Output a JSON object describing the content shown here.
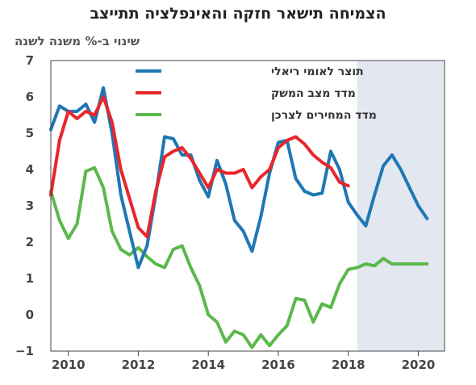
{
  "chart_data": {
    "type": "line",
    "title": "הצמיחה תישאר חזקה והאינפלציה תתייצב",
    "ylabel": "שינוי ב-% משנה לשנה",
    "xlim": [
      2009.5,
      2020.75
    ],
    "ylim": [
      -1,
      7
    ],
    "y_ticks": [
      "7",
      "6",
      "5",
      "4",
      "3",
      "2",
      "1",
      "0",
      "−1"
    ],
    "y_tick_values": [
      7,
      6,
      5,
      4,
      3,
      2,
      1,
      0,
      -1
    ],
    "x_ticks": [
      "2010",
      "2012",
      "2014",
      "2016",
      "2018",
      "2020"
    ],
    "x_tick_values": [
      2010,
      2012,
      2014,
      2016,
      2018,
      2020
    ],
    "forecast_region": {
      "from": 2018.25,
      "to": 2020.75,
      "color": "#e3e7f0"
    },
    "legend_position": "top-center",
    "series": [
      {
        "name": "תוצר לאומי ריאלי",
        "color": "#1f77b4",
        "x": [
          2009.5,
          2009.75,
          2010.0,
          2010.25,
          2010.5,
          2010.75,
          2011.0,
          2011.25,
          2011.5,
          2011.75,
          2012.0,
          2012.25,
          2012.5,
          2012.75,
          2013.0,
          2013.25,
          2013.5,
          2013.75,
          2014.0,
          2014.25,
          2014.5,
          2014.75,
          2015.0,
          2015.25,
          2015.5,
          2015.75,
          2016.0,
          2016.25,
          2016.5,
          2016.75,
          2017.0,
          2017.25,
          2017.5,
          2017.75,
          2018.0,
          2018.25,
          2018.5,
          2018.75,
          2019.0,
          2019.25,
          2019.5,
          2019.75,
          2020.0,
          2020.25
        ],
        "y": [
          5.1,
          5.75,
          5.6,
          5.6,
          5.8,
          5.3,
          6.25,
          5.0,
          3.3,
          2.3,
          1.3,
          1.9,
          3.3,
          4.9,
          4.85,
          4.4,
          4.4,
          3.7,
          3.25,
          4.25,
          3.6,
          2.6,
          2.3,
          1.75,
          2.7,
          3.9,
          4.75,
          4.8,
          3.75,
          3.4,
          3.3,
          3.35,
          4.5,
          4.0,
          3.1,
          2.75,
          2.45,
          3.3,
          4.1,
          4.4,
          4.0,
          3.5,
          3.0,
          2.65
        ]
      },
      {
        "name": "מדד מצב המשק",
        "color": "#e8262b",
        "x": [
          2009.5,
          2009.75,
          2010.0,
          2010.25,
          2010.5,
          2010.75,
          2011.0,
          2011.25,
          2011.5,
          2011.75,
          2012.0,
          2012.25,
          2012.5,
          2012.75,
          2013.0,
          2013.25,
          2013.5,
          2013.75,
          2014.0,
          2014.25,
          2014.5,
          2014.75,
          2015.0,
          2015.25,
          2015.5,
          2015.75,
          2016.0,
          2016.25,
          2016.5,
          2016.75,
          2017.0,
          2017.25,
          2017.5,
          2017.75,
          2018.0
        ],
        "y": [
          3.3,
          4.8,
          5.6,
          5.4,
          5.6,
          5.5,
          6.0,
          5.3,
          4.0,
          3.2,
          2.4,
          2.15,
          3.4,
          4.35,
          4.5,
          4.6,
          4.3,
          3.9,
          3.5,
          4.0,
          3.9,
          3.9,
          4.0,
          3.5,
          3.8,
          4.0,
          4.6,
          4.8,
          4.9,
          4.7,
          4.4,
          4.2,
          4.05,
          3.65,
          3.55
        ]
      },
      {
        "name": "מדד המחירים לצרכן",
        "color": "#5cb84c",
        "x": [
          2009.5,
          2009.75,
          2010.0,
          2010.25,
          2010.5,
          2010.75,
          2011.0,
          2011.25,
          2011.5,
          2011.75,
          2012.0,
          2012.25,
          2012.5,
          2012.75,
          2013.0,
          2013.25,
          2013.5,
          2013.75,
          2014.0,
          2014.25,
          2014.5,
          2014.75,
          2015.0,
          2015.25,
          2015.5,
          2015.75,
          2016.0,
          2016.25,
          2016.5,
          2016.75,
          2017.0,
          2017.25,
          2017.5,
          2017.75,
          2018.0,
          2018.25,
          2018.5,
          2018.75,
          2019.0,
          2019.25,
          2019.5,
          2019.75,
          2020.0,
          2020.25
        ],
        "y": [
          3.4,
          2.6,
          2.1,
          2.5,
          3.95,
          4.05,
          3.5,
          2.3,
          1.8,
          1.65,
          1.85,
          1.6,
          1.4,
          1.3,
          1.8,
          1.9,
          1.3,
          0.8,
          0.0,
          -0.2,
          -0.75,
          -0.45,
          -0.55,
          -0.9,
          -0.55,
          -0.85,
          -0.55,
          -0.3,
          0.45,
          0.4,
          -0.2,
          0.3,
          0.2,
          0.85,
          1.25,
          1.3,
          1.4,
          1.35,
          1.55,
          1.4,
          1.4,
          1.4,
          1.4,
          1.4
        ]
      }
    ]
  }
}
